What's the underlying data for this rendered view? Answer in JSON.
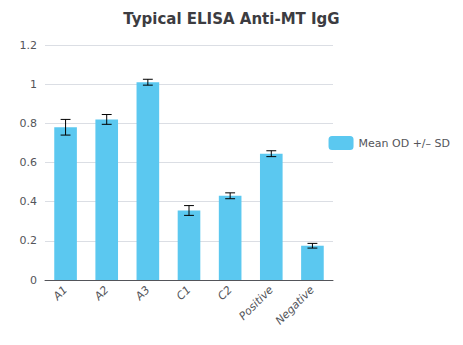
{
  "chart_data": {
    "type": "bar",
    "title": "Typical ELISA Anti-MT IgG",
    "categories": [
      "A1",
      "A2",
      "A3",
      "C1",
      "C2",
      "Positive",
      "Negative"
    ],
    "series": [
      {
        "name": "Mean OD +/– SD",
        "color": "#5BC8F0",
        "values": [
          0.78,
          0.82,
          1.01,
          0.355,
          0.43,
          0.645,
          0.175
        ],
        "errors": [
          0.04,
          0.025,
          0.015,
          0.025,
          0.015,
          0.015,
          0.012
        ]
      }
    ],
    "ylim": [
      0,
      1.2
    ],
    "yticks": [
      0,
      0.2,
      0.4,
      0.6,
      0.8,
      1,
      1.2
    ],
    "grid": true,
    "legend": "right"
  }
}
